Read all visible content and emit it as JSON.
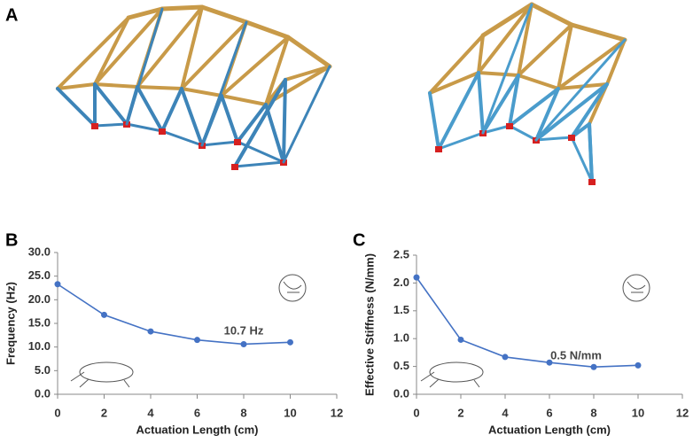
{
  "panels": [
    "A",
    "B",
    "C"
  ],
  "chart_data": [
    {
      "type": "line",
      "x_label": "Actuation Length (cm)",
      "y_label": "Frequency (Hz)",
      "annotation": "10.7 Hz",
      "x": [
        0,
        2,
        4,
        6,
        8,
        10
      ],
      "values": [
        23.3,
        16.8,
        13.3,
        11.5,
        10.6,
        11.0
      ],
      "color": "#4472c4",
      "xlim": [
        0,
        12
      ],
      "xticks": [
        0,
        2,
        4,
        6,
        8,
        10,
        12
      ],
      "ylim": [
        0,
        30
      ],
      "yticks": [
        {
          "value": 0,
          "label": "0.0"
        },
        {
          "value": 5,
          "label": "5.0"
        },
        {
          "value": 10,
          "label": "10.0"
        },
        {
          "value": 15,
          "label": "15.0"
        },
        {
          "value": 20,
          "label": "20.0"
        },
        {
          "value": 25,
          "label": "25.0"
        },
        {
          "value": 30,
          "label": "30.0"
        }
      ]
    },
    {
      "type": "line",
      "x_label": "Actuation Length (cm)",
      "y_label": "Effective Stiffness (N/mm)",
      "annotation": "0.5 N/mm",
      "x": [
        0,
        2,
        4,
        6,
        8,
        10
      ],
      "values": [
        2.1,
        0.98,
        0.67,
        0.57,
        0.49,
        0.52
      ],
      "color": "#4472c4",
      "xlim": [
        0,
        12
      ],
      "xticks": [
        0,
        2,
        4,
        6,
        8,
        10,
        12
      ],
      "ylim": [
        0,
        2.5
      ],
      "yticks": [
        {
          "value": 0,
          "label": "0.0"
        },
        0.5,
        {
          "value": 1,
          "label": "1.0"
        },
        1.5,
        {
          "value": 2,
          "label": "2.0"
        },
        2.5
      ]
    }
  ]
}
